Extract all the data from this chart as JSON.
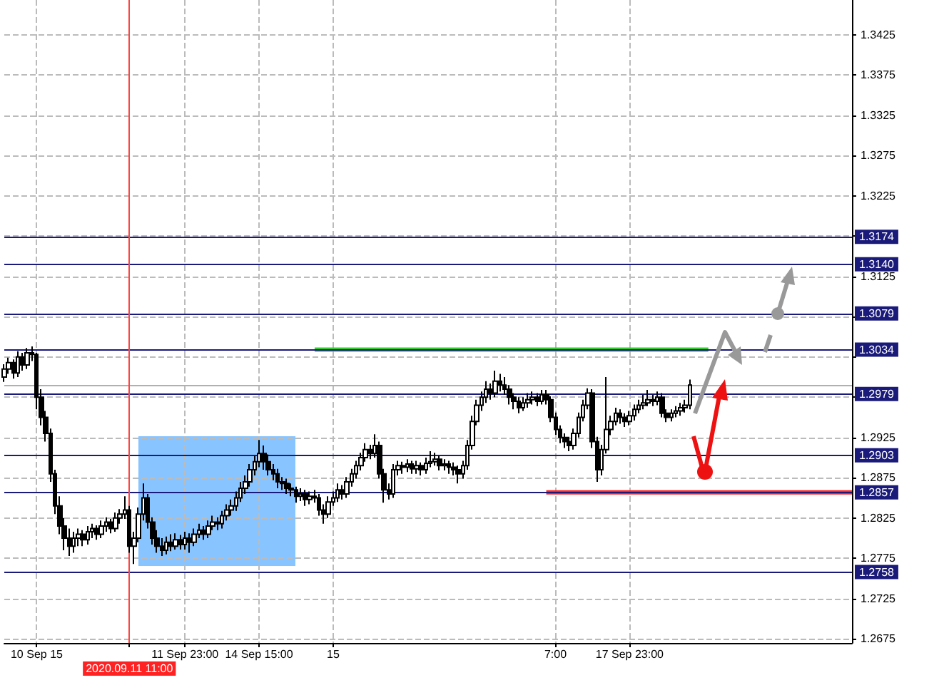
{
  "chart_data": {
    "type": "candlestick",
    "color": "#000000",
    "categories": [
      null,
      null,
      null,
      null,
      null,
      null,
      null,
      "10 Sep 15",
      null,
      null,
      null,
      null,
      null,
      null,
      null,
      null,
      null,
      null,
      null,
      null,
      null,
      null,
      null,
      null,
      null,
      null,
      null,
      "2020.09.11 11:00",
      null,
      null,
      null,
      null,
      null,
      null,
      null,
      null,
      null,
      null,
      null,
      "11 Sep 23:00",
      null,
      null,
      null,
      null,
      null,
      null,
      null,
      null,
      null,
      null,
      null,
      null,
      null,
      null,
      null,
      "14 Sep 15:00",
      null,
      null,
      null,
      null,
      null,
      null,
      null,
      null,
      null,
      null,
      null,
      null,
      null,
      null,
      null,
      "15",
      null,
      null,
      null,
      null,
      null,
      null,
      null,
      null,
      null,
      null,
      null,
      null,
      null,
      null,
      null,
      null,
      null,
      null,
      null,
      null,
      null,
      null,
      null,
      null,
      null,
      null,
      null,
      null,
      null,
      null,
      null,
      null,
      null,
      null,
      null,
      null,
      null,
      null,
      null,
      null,
      null,
      null,
      null,
      null,
      null,
      null,
      null,
      "7:00",
      null,
      null,
      null,
      null,
      null,
      null,
      null,
      null,
      null,
      null,
      null,
      null,
      null,
      null,
      null,
      "17 Sep 23:00",
      null,
      null,
      null,
      null,
      null,
      null,
      null,
      null,
      null,
      null,
      null,
      null,
      null,
      null,
      null,
      null,
      null,
      null,
      null,
      null,
      null,
      null,
      null,
      null,
      null,
      null,
      null,
      null,
      null,
      null,
      null,
      null,
      null,
      null,
      null,
      null,
      null,
      null,
      null,
      null,
      null,
      null,
      null,
      null,
      null,
      null,
      null,
      null
    ],
    "ohlc": [
      [
        1.3,
        1.3016,
        1.2994,
        1.301
      ],
      [
        1.301,
        1.3024,
        1.3004,
        1.3018
      ],
      [
        1.3018,
        1.3022,
        1.2998,
        1.3005
      ],
      [
        1.3005,
        1.3032,
        1.3,
        1.3025
      ],
      [
        1.3025,
        1.303,
        1.3008,
        1.3015
      ],
      [
        1.3015,
        1.3036,
        1.301,
        1.303
      ],
      [
        1.303,
        1.3038,
        1.302,
        1.3028
      ],
      [
        1.3028,
        1.303,
        1.296,
        1.2975
      ],
      [
        1.2975,
        1.2985,
        1.294,
        1.295
      ],
      [
        1.295,
        1.2958,
        1.292,
        1.293
      ],
      [
        1.293,
        1.2936,
        1.287,
        1.288
      ],
      [
        1.288,
        1.2885,
        1.283,
        1.284
      ],
      [
        1.284,
        1.2852,
        1.2805,
        1.2815
      ],
      [
        1.2815,
        1.2825,
        1.2785,
        1.28
      ],
      [
        1.28,
        1.2812,
        1.2778,
        1.279
      ],
      [
        1.279,
        1.2808,
        1.2782,
        1.28
      ],
      [
        1.28,
        1.2812,
        1.279,
        1.2805
      ],
      [
        1.2805,
        1.281,
        1.279,
        1.2798
      ],
      [
        1.2798,
        1.2815,
        1.2792,
        1.2808
      ],
      [
        1.2808,
        1.2818,
        1.28,
        1.2812
      ],
      [
        1.2812,
        1.2816,
        1.2798,
        1.2805
      ],
      [
        1.2805,
        1.2822,
        1.28,
        1.2815
      ],
      [
        1.2815,
        1.2826,
        1.2808,
        1.282
      ],
      [
        1.282,
        1.2824,
        1.2806,
        1.2812
      ],
      [
        1.2812,
        1.2832,
        1.2808,
        1.2825
      ],
      [
        1.2825,
        1.2836,
        1.2818,
        1.283
      ],
      [
        1.283,
        1.2852,
        1.2824,
        1.2835
      ],
      [
        1.2835,
        1.284,
        1.2782,
        1.279
      ],
      [
        1.279,
        1.2808,
        1.2768,
        1.28
      ],
      [
        1.28,
        1.2838,
        1.2795,
        1.283
      ],
      [
        1.283,
        1.2868,
        1.2822,
        1.285
      ],
      [
        1.285,
        1.2855,
        1.2812,
        1.282
      ],
      [
        1.282,
        1.2826,
        1.2792,
        1.28
      ],
      [
        1.28,
        1.281,
        1.2782,
        1.279
      ],
      [
        1.279,
        1.28,
        1.2778,
        1.2785
      ],
      [
        1.2785,
        1.2802,
        1.278,
        1.2795
      ],
      [
        1.2795,
        1.2805,
        1.2784,
        1.279
      ],
      [
        1.279,
        1.2806,
        1.2786,
        1.2798
      ],
      [
        1.2798,
        1.2804,
        1.2786,
        1.2792
      ],
      [
        1.2792,
        1.2808,
        1.2786,
        1.28
      ],
      [
        1.28,
        1.2806,
        1.2782,
        1.2795
      ],
      [
        1.2795,
        1.2812,
        1.279,
        1.2805
      ],
      [
        1.2805,
        1.2818,
        1.28,
        1.281
      ],
      [
        1.281,
        1.2815,
        1.2798,
        1.2805
      ],
      [
        1.2805,
        1.2822,
        1.28,
        1.2815
      ],
      [
        1.2815,
        1.2828,
        1.281,
        1.282
      ],
      [
        1.282,
        1.2826,
        1.281,
        1.2818
      ],
      [
        1.2818,
        1.2834,
        1.2812,
        1.2828
      ],
      [
        1.2828,
        1.2842,
        1.2822,
        1.2835
      ],
      [
        1.2835,
        1.2848,
        1.2828,
        1.284
      ],
      [
        1.284,
        1.2858,
        1.2834,
        1.285
      ],
      [
        1.285,
        1.287,
        1.2845,
        1.2862
      ],
      [
        1.2862,
        1.2878,
        1.2855,
        1.287
      ],
      [
        1.287,
        1.2892,
        1.2864,
        1.2885
      ],
      [
        1.2885,
        1.2902,
        1.2878,
        1.2895
      ],
      [
        1.2895,
        1.2922,
        1.2888,
        1.2905
      ],
      [
        1.2905,
        1.2915,
        1.2885,
        1.2895
      ],
      [
        1.2895,
        1.2904,
        1.2878,
        1.2885
      ],
      [
        1.2885,
        1.2892,
        1.2872,
        1.288
      ],
      [
        1.288,
        1.2886,
        1.2862,
        1.287
      ],
      [
        1.287,
        1.2876,
        1.286,
        1.2868
      ],
      [
        1.2868,
        1.2874,
        1.2855,
        1.2862
      ],
      [
        1.2862,
        1.2868,
        1.2852,
        1.286
      ],
      [
        1.286,
        1.2864,
        1.2844,
        1.2852
      ],
      [
        1.2852,
        1.2862,
        1.2846,
        1.2855
      ],
      [
        1.2855,
        1.286,
        1.284,
        1.2848
      ],
      [
        1.2848,
        1.2858,
        1.2842,
        1.2852
      ],
      [
        1.2852,
        1.286,
        1.2844,
        1.285
      ],
      [
        1.285,
        1.2855,
        1.2828,
        1.2835
      ],
      [
        1.2835,
        1.2842,
        1.2818,
        1.283
      ],
      [
        1.283,
        1.2852,
        1.2825,
        1.2845
      ],
      [
        1.2845,
        1.2858,
        1.284,
        1.285
      ],
      [
        1.285,
        1.2868,
        1.2845,
        1.286
      ],
      [
        1.286,
        1.2866,
        1.2848,
        1.2855
      ],
      [
        1.2855,
        1.2876,
        1.285,
        1.287
      ],
      [
        1.287,
        1.2886,
        1.2864,
        1.288
      ],
      [
        1.288,
        1.2896,
        1.2874,
        1.289
      ],
      [
        1.289,
        1.2906,
        1.2884,
        1.29
      ],
      [
        1.29,
        1.2918,
        1.2895,
        1.291
      ],
      [
        1.291,
        1.2916,
        1.2898,
        1.2905
      ],
      [
        1.2905,
        1.2929,
        1.29,
        1.2915
      ],
      [
        1.2915,
        1.292,
        1.2874,
        1.288
      ],
      [
        1.288,
        1.2886,
        1.2844,
        1.286
      ],
      [
        1.286,
        1.2868,
        1.2848,
        1.2855
      ],
      [
        1.2855,
        1.2892,
        1.285,
        1.2885
      ],
      [
        1.2885,
        1.2896,
        1.2878,
        1.289
      ],
      [
        1.289,
        1.2895,
        1.288,
        1.2888
      ],
      [
        1.2888,
        1.2898,
        1.2882,
        1.2892
      ],
      [
        1.2892,
        1.2896,
        1.288,
        1.2886
      ],
      [
        1.2886,
        1.2896,
        1.288,
        1.289
      ],
      [
        1.289,
        1.2894,
        1.2878,
        1.2885
      ],
      [
        1.2885,
        1.29,
        1.288,
        1.2893
      ],
      [
        1.2893,
        1.2908,
        1.2888,
        1.2895
      ],
      [
        1.2895,
        1.2906,
        1.289,
        1.2898
      ],
      [
        1.2898,
        1.2902,
        1.2884,
        1.289
      ],
      [
        1.289,
        1.2898,
        1.2884,
        1.2892
      ],
      [
        1.2892,
        1.2896,
        1.288,
        1.2888
      ],
      [
        1.2888,
        1.2894,
        1.2878,
        1.2885
      ],
      [
        1.2885,
        1.289,
        1.2868,
        1.288
      ],
      [
        1.288,
        1.2896,
        1.2874,
        1.289
      ],
      [
        1.289,
        1.2922,
        1.2885,
        1.2915
      ],
      [
        1.2915,
        1.2952,
        1.291,
        1.2945
      ],
      [
        1.2945,
        1.2972,
        1.294,
        1.2965
      ],
      [
        1.2965,
        1.2982,
        1.2958,
        1.2975
      ],
      [
        1.2975,
        1.2995,
        1.2968,
        1.2985
      ],
      [
        1.2985,
        1.2992,
        1.2972,
        1.298
      ],
      [
        1.298,
        1.3008,
        1.2975,
        1.2995
      ],
      [
        1.2995,
        1.3004,
        1.2982,
        1.299
      ],
      [
        1.299,
        1.3,
        1.2978,
        1.2985
      ],
      [
        1.2985,
        1.299,
        1.2966,
        1.2975
      ],
      [
        1.2975,
        1.298,
        1.296,
        1.297
      ],
      [
        1.297,
        1.2975,
        1.2955,
        1.2962
      ],
      [
        1.2962,
        1.2975,
        1.2958,
        1.2968
      ],
      [
        1.2968,
        1.298,
        1.2962,
        1.2972
      ],
      [
        1.2972,
        1.2982,
        1.2966,
        1.2975
      ],
      [
        1.2975,
        1.298,
        1.2964,
        1.297
      ],
      [
        1.297,
        1.2984,
        1.2966,
        1.2978
      ],
      [
        1.2978,
        1.2984,
        1.2966,
        1.2972
      ],
      [
        1.2972,
        1.2976,
        1.2944,
        1.295
      ],
      [
        1.295,
        1.2956,
        1.2928,
        1.2935
      ],
      [
        1.2935,
        1.294,
        1.2918,
        1.2925
      ],
      [
        1.2925,
        1.293,
        1.2912,
        1.292
      ],
      [
        1.292,
        1.2926,
        1.2908,
        1.2915
      ],
      [
        1.2915,
        1.2936,
        1.291,
        1.293
      ],
      [
        1.293,
        1.2956,
        1.2925,
        1.295
      ],
      [
        1.295,
        1.2972,
        1.2945,
        1.2965
      ],
      [
        1.2965,
        1.2986,
        1.296,
        1.298
      ],
      [
        1.298,
        1.2985,
        1.2912,
        1.292
      ],
      [
        1.292,
        1.2926,
        1.287,
        1.2885
      ],
      [
        1.2885,
        1.2916,
        1.2878,
        1.291
      ],
      [
        1.291,
        1.3,
        1.2905,
        1.2935
      ],
      [
        1.2935,
        1.2952,
        1.2928,
        1.2945
      ],
      [
        1.2945,
        1.2962,
        1.294,
        1.2955
      ],
      [
        1.2955,
        1.296,
        1.2942,
        1.295
      ],
      [
        1.295,
        1.2955,
        1.2938,
        1.2945
      ],
      [
        1.2945,
        1.2958,
        1.294,
        1.2952
      ],
      [
        1.2952,
        1.2966,
        1.2946,
        1.296
      ],
      [
        1.296,
        1.2972,
        1.2955,
        1.2965
      ],
      [
        1.2965,
        1.2978,
        1.296,
        1.2968
      ],
      [
        1.2968,
        1.2984,
        1.2964,
        1.2972
      ],
      [
        1.2972,
        1.2978,
        1.2964,
        1.297
      ],
      [
        1.297,
        1.2982,
        1.2965,
        1.2975
      ],
      [
        1.2975,
        1.298,
        1.295,
        1.2955
      ],
      [
        1.2955,
        1.296,
        1.2944,
        1.295
      ],
      [
        1.295,
        1.296,
        1.2945,
        1.2955
      ],
      [
        1.2955,
        1.2964,
        1.295,
        1.2958
      ],
      [
        1.2958,
        1.2968,
        1.2952,
        1.2962
      ],
      [
        1.2962,
        1.2972,
        1.2956,
        1.2965
      ],
      [
        1.2965,
        1.2997,
        1.296,
        1.299
      ],
      null,
      null,
      null,
      null,
      null,
      null,
      null,
      null,
      null,
      null,
      null,
      null,
      null,
      null,
      null,
      null,
      null,
      null,
      null,
      null,
      null,
      null,
      null,
      null,
      null,
      null,
      null,
      null,
      null,
      null,
      null,
      null,
      null,
      null,
      null
    ],
    "series": [
      {
        "type": "line",
        "color": "#33cc33",
        "values": [
          null,
          null,
          null,
          null,
          null,
          null,
          null,
          null,
          null,
          null,
          null,
          null,
          null,
          null,
          null,
          null,
          null,
          null,
          null,
          null,
          null,
          null,
          null,
          null,
          null,
          null,
          null,
          null,
          null,
          null,
          null,
          null,
          null,
          null,
          null,
          null,
          null,
          null,
          null,
          null,
          null,
          null,
          null,
          null,
          null,
          null,
          null,
          null,
          null,
          null,
          null,
          null,
          null,
          null,
          null,
          null,
          null,
          null,
          null,
          null,
          null,
          null,
          null,
          null,
          null,
          null,
          null,
          1.3034,
          1.3034,
          1.3034,
          1.3034,
          1.3034,
          1.3034,
          1.3034,
          1.3034,
          1.3034,
          1.3034,
          1.3034,
          1.3034,
          1.3034,
          1.3034,
          1.3034,
          1.3034,
          1.3034,
          1.3034,
          1.3034,
          1.3034,
          1.3034,
          1.3034,
          1.3034,
          1.3034,
          1.3034,
          1.3034,
          1.3034,
          1.3034,
          1.3034,
          1.3034,
          1.3034,
          1.3034,
          1.3034,
          1.3034,
          1.3034,
          1.3034,
          1.3034,
          1.3034,
          1.3034,
          1.3034,
          1.3034,
          1.3034,
          1.3034,
          1.3034,
          1.3034,
          1.3034,
          1.3034,
          1.3034,
          1.3034,
          1.3034,
          1.3034,
          1.3034,
          1.3034,
          1.3034,
          1.3034,
          1.3034,
          1.3034,
          1.3034,
          1.3034,
          1.3034,
          1.3034,
          1.3034,
          1.3034,
          1.3034,
          1.3034,
          1.3034,
          1.3034,
          1.3034,
          1.3034,
          1.3034,
          1.3034,
          1.3034,
          1.3034,
          1.3034,
          1.3034,
          1.3034,
          1.3034,
          1.3034,
          1.3034,
          1.3034,
          1.3034,
          1.3034,
          1.3034,
          1.3034,
          1.3034,
          1.3034,
          null,
          null,
          null,
          null,
          null,
          null,
          null,
          null,
          null,
          null,
          null,
          null,
          null,
          null,
          null,
          null,
          null,
          null,
          null,
          null,
          null,
          null,
          null,
          null,
          null,
          null,
          null,
          null,
          null,
          null,
          null
        ]
      },
      {
        "type": "line",
        "color": "#ff2222",
        "values": [
          null,
          null,
          null,
          null,
          null,
          null,
          null,
          null,
          null,
          null,
          null,
          null,
          null,
          null,
          null,
          null,
          null,
          null,
          null,
          null,
          null,
          null,
          null,
          null,
          null,
          null,
          null,
          null,
          null,
          null,
          null,
          null,
          null,
          null,
          null,
          null,
          null,
          null,
          null,
          null,
          null,
          null,
          null,
          null,
          null,
          null,
          null,
          null,
          null,
          null,
          null,
          null,
          null,
          null,
          null,
          null,
          null,
          null,
          null,
          null,
          null,
          null,
          null,
          null,
          null,
          null,
          null,
          null,
          null,
          null,
          null,
          null,
          null,
          null,
          null,
          null,
          null,
          null,
          null,
          null,
          null,
          null,
          null,
          null,
          null,
          null,
          null,
          null,
          null,
          null,
          null,
          null,
          null,
          null,
          null,
          null,
          null,
          null,
          null,
          null,
          null,
          null,
          null,
          null,
          null,
          null,
          null,
          null,
          null,
          null,
          null,
          null,
          null,
          null,
          null,
          null,
          null,
          1.2857,
          1.2857,
          1.2857,
          1.2857,
          1.2857,
          1.2857,
          1.2857,
          1.2857,
          1.2857,
          1.2857,
          1.2857,
          1.2857,
          1.2857,
          1.2857,
          1.2857,
          1.2857,
          1.2857,
          1.2857,
          1.2857,
          1.2857,
          1.2857,
          1.2857,
          1.2857,
          1.2857,
          1.2857,
          1.2857,
          1.2857,
          1.2857,
          1.2857,
          1.2857,
          1.2857,
          1.2857,
          1.2857,
          1.2857,
          1.2857,
          1.2857,
          1.2857,
          1.2857,
          1.2857,
          1.2857,
          1.2857,
          1.2857,
          1.2857,
          1.2857,
          1.2857,
          1.2857,
          1.2857,
          1.2857,
          1.2857,
          1.2857,
          1.2857,
          1.2857,
          1.2857,
          1.2857,
          1.2857,
          1.2857,
          1.2857,
          1.2857,
          1.2857,
          1.2857,
          1.2857,
          1.2857,
          1.2857,
          1.2857,
          1.2857,
          1.2857,
          1.2857
        ]
      }
    ],
    "ylim": [
      1.267,
      1.3468
    ],
    "yticks": [
      1.2675,
      1.2725,
      1.2775,
      1.2825,
      1.2875,
      1.2925,
      {
        "value": 1.2975,
        "label": null
      },
      {
        "value": 1.3025,
        "label": null
      },
      {
        "value": 1.3075,
        "label": null
      },
      1.3125,
      {
        "value": 1.3175,
        "label": null
      },
      1.3225,
      1.3275,
      1.3325,
      1.3375,
      1.3425
    ],
    "ref_lines": [
      {
        "axis": "y",
        "value": 1.3174,
        "label": "1.3174",
        "color": "#1a1a7a"
      },
      {
        "axis": "y",
        "value": 1.314,
        "label": "1.3140",
        "color": "#1a1a7a"
      },
      {
        "axis": "y",
        "value": 1.3079,
        "label": "1.3079",
        "color": "#1a1a7a"
      },
      {
        "axis": "y",
        "value": 1.3034,
        "label": "1.3034",
        "color": "#1a1a7a"
      },
      {
        "axis": "y",
        "value": 1.2989,
        "label": null,
        "color": "#b0b0b0"
      },
      {
        "axis": "y",
        "value": 1.2979,
        "label": "1.2979",
        "color": "#1a1a7a"
      },
      {
        "axis": "y",
        "value": 1.2903,
        "label": "1.2903",
        "color": "#1a1a7a"
      },
      {
        "axis": "y",
        "value": 1.2857,
        "label": "1.2857",
        "color": "#1a1a7a"
      },
      {
        "axis": "y",
        "value": 1.2758,
        "label": "1.2758",
        "color": "#1a1a7a"
      },
      {
        "axis": "x",
        "value": "2020.09.11 11:00",
        "label": null,
        "color": "#ff4444"
      }
    ],
    "grid": true,
    "marker": "none"
  }
}
